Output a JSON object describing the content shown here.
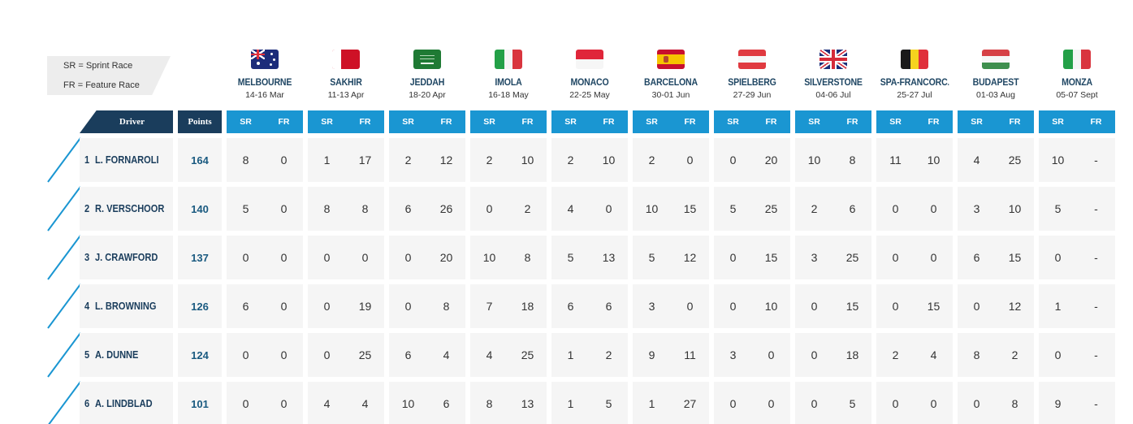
{
  "legend": {
    "sr": "SR = Sprint Race",
    "fr": "FR = Feature Race"
  },
  "header": {
    "driver": "Driver",
    "points": "Points",
    "sr": "SR",
    "fr": "FR"
  },
  "races": [
    {
      "name": "MELBOURNE",
      "dates": "14-16 Mar",
      "flag": "australia"
    },
    {
      "name": "SAKHIR",
      "dates": "11-13 Apr",
      "flag": "bahrain"
    },
    {
      "name": "JEDDAH",
      "dates": "18-20 Apr",
      "flag": "saudi-arabia"
    },
    {
      "name": "IMOLA",
      "dates": "16-18 May",
      "flag": "italy"
    },
    {
      "name": "MONACO",
      "dates": "22-25 May",
      "flag": "monaco"
    },
    {
      "name": "BARCELONA",
      "dates": "30-01 Jun",
      "flag": "spain"
    },
    {
      "name": "SPIELBERG",
      "dates": "27-29 Jun",
      "flag": "austria"
    },
    {
      "name": "SILVERSTONE",
      "dates": "04-06 Jul",
      "flag": "united-kingdom"
    },
    {
      "name": "SPA-FRANCORC...",
      "dates": "25-27 Jul",
      "flag": "belgium"
    },
    {
      "name": "BUDAPEST",
      "dates": "01-03 Aug",
      "flag": "hungary"
    },
    {
      "name": "MONZA",
      "dates": "05-07 Sept",
      "flag": "italy"
    }
  ],
  "drivers": [
    {
      "pos": "1",
      "name": "L. FORNAROLI",
      "points": "164",
      "results": [
        [
          "8",
          "0"
        ],
        [
          "1",
          "17"
        ],
        [
          "2",
          "12"
        ],
        [
          "2",
          "10"
        ],
        [
          "2",
          "10"
        ],
        [
          "2",
          "0"
        ],
        [
          "0",
          "20"
        ],
        [
          "10",
          "8"
        ],
        [
          "11",
          "10"
        ],
        [
          "4",
          "25"
        ],
        [
          "10",
          "-"
        ]
      ]
    },
    {
      "pos": "2",
      "name": "R. VERSCHOOR",
      "points": "140",
      "results": [
        [
          "5",
          "0"
        ],
        [
          "8",
          "8"
        ],
        [
          "6",
          "26"
        ],
        [
          "0",
          "2"
        ],
        [
          "4",
          "0"
        ],
        [
          "10",
          "15"
        ],
        [
          "5",
          "25"
        ],
        [
          "2",
          "6"
        ],
        [
          "0",
          "0"
        ],
        [
          "3",
          "10"
        ],
        [
          "5",
          "-"
        ]
      ]
    },
    {
      "pos": "3",
      "name": "J. CRAWFORD",
      "points": "137",
      "results": [
        [
          "0",
          "0"
        ],
        [
          "0",
          "0"
        ],
        [
          "0",
          "20"
        ],
        [
          "10",
          "8"
        ],
        [
          "5",
          "13"
        ],
        [
          "5",
          "12"
        ],
        [
          "0",
          "15"
        ],
        [
          "3",
          "25"
        ],
        [
          "0",
          "0"
        ],
        [
          "6",
          "15"
        ],
        [
          "0",
          "-"
        ]
      ]
    },
    {
      "pos": "4",
      "name": "L. BROWNING",
      "points": "126",
      "results": [
        [
          "6",
          "0"
        ],
        [
          "0",
          "19"
        ],
        [
          "0",
          "8"
        ],
        [
          "7",
          "18"
        ],
        [
          "6",
          "6"
        ],
        [
          "3",
          "0"
        ],
        [
          "0",
          "10"
        ],
        [
          "0",
          "15"
        ],
        [
          "0",
          "15"
        ],
        [
          "0",
          "12"
        ],
        [
          "1",
          "-"
        ]
      ]
    },
    {
      "pos": "5",
      "name": "A. DUNNE",
      "points": "124",
      "results": [
        [
          "0",
          "0"
        ],
        [
          "0",
          "25"
        ],
        [
          "6",
          "4"
        ],
        [
          "4",
          "25"
        ],
        [
          "1",
          "2"
        ],
        [
          "9",
          "11"
        ],
        [
          "3",
          "0"
        ],
        [
          "0",
          "18"
        ],
        [
          "2",
          "4"
        ],
        [
          "8",
          "2"
        ],
        [
          "0",
          "-"
        ]
      ]
    },
    {
      "pos": "6",
      "name": "A. LINDBLAD",
      "points": "101",
      "results": [
        [
          "0",
          "0"
        ],
        [
          "4",
          "4"
        ],
        [
          "10",
          "6"
        ],
        [
          "8",
          "13"
        ],
        [
          "1",
          "5"
        ],
        [
          "1",
          "27"
        ],
        [
          "0",
          "0"
        ],
        [
          "0",
          "5"
        ],
        [
          "0",
          "0"
        ],
        [
          "0",
          "8"
        ],
        [
          "9",
          "-"
        ]
      ]
    }
  ],
  "colors": {
    "navy": "#1a3d5c",
    "accent": "#1a96d2",
    "cell": "#f5f5f5"
  }
}
